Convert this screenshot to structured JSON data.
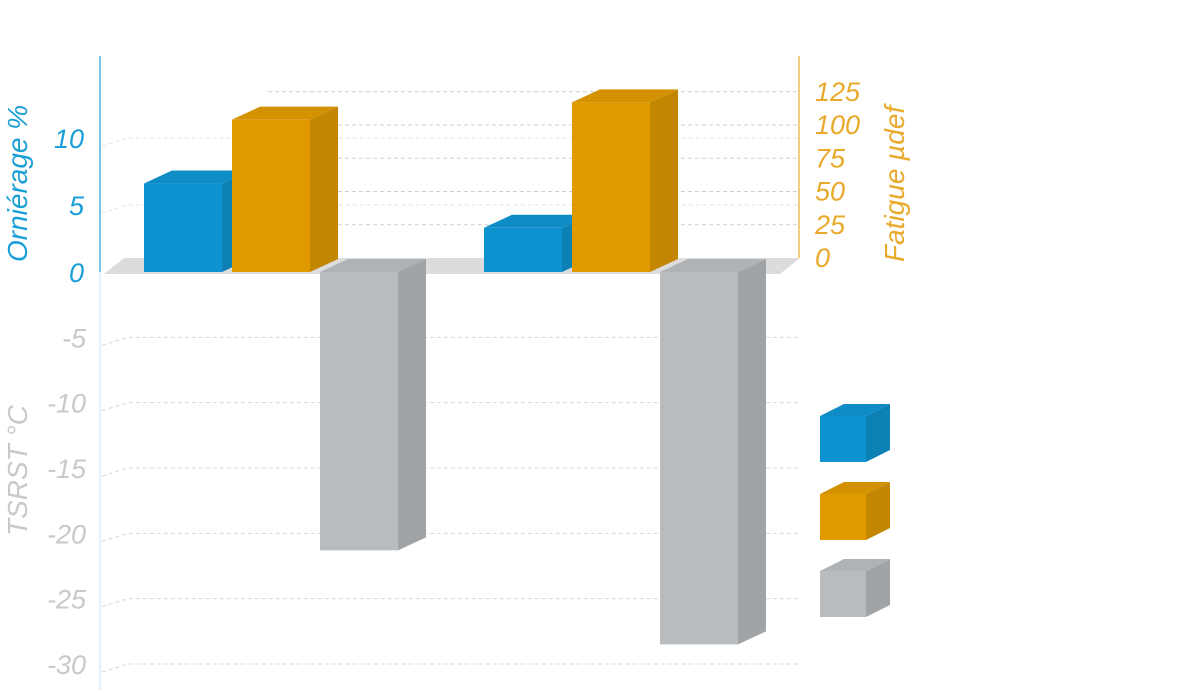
{
  "chart_data": {
    "type": "bar",
    "categories": [
      "",
      ""
    ],
    "left_axis_top": {
      "label": "Orniérage %",
      "range": [
        0,
        15
      ],
      "ticks": [
        "0",
        "5",
        "10"
      ],
      "color": "#1a9fd6"
    },
    "left_axis_bottom": {
      "label": "TSRST °C",
      "range": [
        -30,
        0
      ],
      "ticks": [
        "-5",
        "-10",
        "-15",
        "-20",
        "-25",
        "-30"
      ],
      "color": "#c6cacd"
    },
    "right_axis": {
      "label": "Fatigue µdef",
      "range": [
        0,
        130
      ],
      "ticks": [
        "0",
        "25",
        "50",
        "75",
        "100",
        "125"
      ],
      "color": "#e9a92a"
    },
    "series": [
      {
        "axis": "left_top",
        "color": "#0f93d0",
        "values": [
          6.6,
          3.3
        ]
      },
      {
        "axis": "right",
        "color": "#e09a00",
        "values": [
          104,
          117
        ]
      },
      {
        "axis": "left_bottom",
        "color": "#b8bcbf",
        "values": [
          -21.3,
          -28.5
        ]
      }
    ],
    "grid": true,
    "legend": {
      "position": "right",
      "entries": [
        "",
        "",
        ""
      ]
    }
  }
}
